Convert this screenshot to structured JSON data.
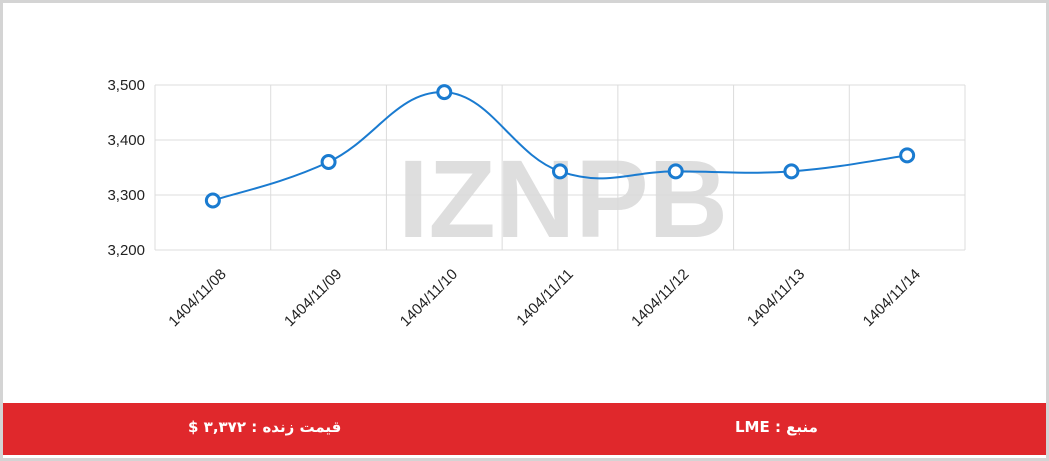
{
  "chart_data": {
    "type": "line",
    "categories": [
      "1404/11/08",
      "1404/11/09",
      "1404/11/10",
      "1404/11/11",
      "1404/11/12",
      "1404/11/13",
      "1404/11/14"
    ],
    "values": [
      3290,
      3360,
      3487,
      3343,
      3343,
      3343,
      3372
    ],
    "color": "#1a7bd0",
    "ylim": [
      3200,
      3500
    ],
    "yticks": [
      {
        "value": 3200,
        "label": "3,200"
      },
      {
        "value": 3300,
        "label": "3,300"
      },
      {
        "value": 3400,
        "label": "3,400"
      },
      {
        "value": 3500,
        "label": "3,500"
      }
    ],
    "grid": true,
    "watermark": "IZNPB"
  },
  "footer": {
    "live_price": "قیمت زنده : ۳,۳۷۲ $",
    "source": "منبع : LME"
  }
}
